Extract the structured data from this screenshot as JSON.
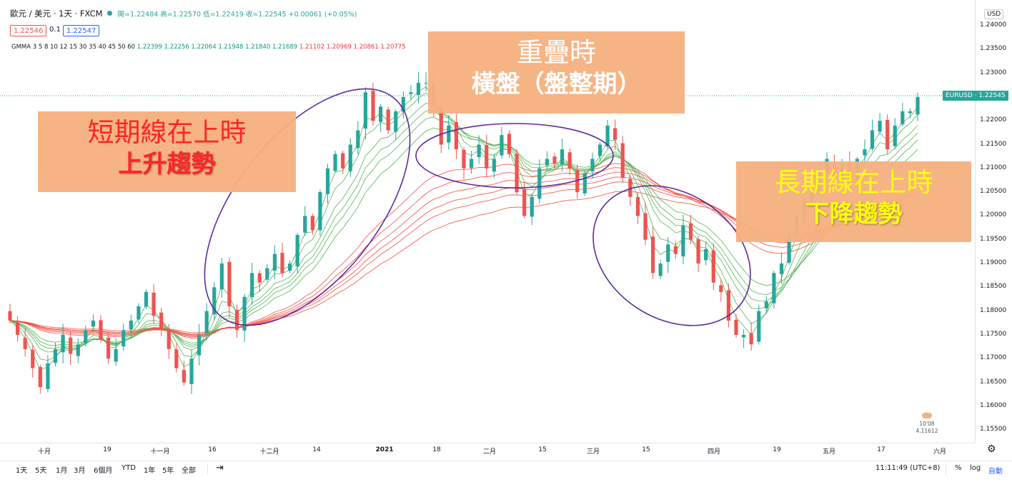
{
  "header": {
    "symbol_line": "歐元 / 美元 · 1天 · FXCM",
    "ohlc": "開=1.22484 高=1.22570 低=1.22419 收=1.22545 +0.00061 (+0.05%)",
    "bid": "1.22546",
    "spread": "0.1",
    "ask": "1.22547",
    "gmma_label": "GMMA 3 5 8 10 12 15 30 35 40 45 50 60",
    "gmma_short_values": "1.22399  1.22256  1.22064  1.21948  1.21840  1.21689",
    "gmma_long_values": "1.21102  1.20969  1.20861  1.20775"
  },
  "price_axis": {
    "currency": "USD",
    "symbol_tag": "EURUSD · 1.22545",
    "ticks": [
      "1.24000",
      "1.23500",
      "1.23000",
      "1.22500",
      "1.22000",
      "1.21500",
      "1.21000",
      "1.20500",
      "1.20000",
      "1.19500",
      "1.19000",
      "1.18500",
      "1.18000",
      "1.17500",
      "1.17000",
      "1.16500",
      "1.16000",
      "1.15500"
    ]
  },
  "time_axis": {
    "labels": [
      "十月",
      "19",
      "十一月",
      "16",
      "十二月",
      "14",
      "2021",
      "18",
      "二月",
      "15",
      "三月",
      "15",
      "四月",
      "19",
      "五月",
      "17",
      "六月"
    ]
  },
  "bottom_bar": {
    "ranges": [
      "1天",
      "5天",
      "1月",
      "3月",
      "6個月",
      "YTD",
      "1年",
      "5年",
      "全部"
    ],
    "clock": "11:11:49 (UTC+8)",
    "percent": "%",
    "log": "log",
    "auto": "自動"
  },
  "annotations": {
    "box1": {
      "line1": "短期線在上時",
      "line2": "上升趨勢"
    },
    "box2": {
      "line1": "重疊時",
      "line2": "橫盤（盤整期）"
    },
    "box3": {
      "line1": "長期線在上時",
      "line2": "下降趨勢"
    }
  },
  "watermark": {
    "line1": "10'08",
    "line2": "4.11612"
  },
  "colors": {
    "up": "#26a69a",
    "down": "#ef5350",
    "short_ma": "#4caf50",
    "long_ma": "#f44336",
    "ellipse": "#5b2a9e"
  },
  "chart_data": {
    "type": "candlestick",
    "title": "歐元 / 美元 · 1天 · FXCM",
    "ylim": [
      1.152,
      1.242
    ],
    "x_labels": [
      "十月",
      "19",
      "十一月",
      "16",
      "十二月",
      "14",
      "2021",
      "18",
      "二月",
      "15",
      "三月",
      "15",
      "四月",
      "19",
      "五月",
      "17",
      "六月"
    ],
    "close_path": [
      1.178,
      1.175,
      1.172,
      1.168,
      1.164,
      1.169,
      1.172,
      1.175,
      1.171,
      1.173,
      1.176,
      1.178,
      1.174,
      1.17,
      1.172,
      1.176,
      1.178,
      1.181,
      1.184,
      1.179,
      1.176,
      1.172,
      1.168,
      1.165,
      1.17,
      1.175,
      1.18,
      1.185,
      1.19,
      1.181,
      1.176,
      1.183,
      1.188,
      1.186,
      1.189,
      1.192,
      1.188,
      1.19,
      1.196,
      1.2,
      1.197,
      1.205,
      1.21,
      1.213,
      1.21,
      1.215,
      1.218,
      1.226,
      1.22,
      1.223,
      1.218,
      1.222,
      1.225,
      1.226,
      1.228,
      1.228,
      1.223,
      1.215,
      1.219,
      1.214,
      1.21,
      1.212,
      1.215,
      1.21,
      1.212,
      1.217,
      1.213,
      1.205,
      1.2,
      1.204,
      1.21,
      1.212,
      1.211,
      1.214,
      1.21,
      1.205,
      1.209,
      1.212,
      1.215,
      1.219,
      1.216,
      1.208,
      1.204,
      1.2,
      1.195,
      1.188,
      1.19,
      1.194,
      1.192,
      1.198,
      1.195,
      1.19,
      1.193,
      1.186,
      1.184,
      1.178,
      1.175,
      1.175,
      1.173,
      1.18,
      1.182,
      1.188,
      1.19,
      1.196,
      1.2,
      1.203,
      1.205,
      1.21,
      1.212,
      1.208,
      1.211,
      1.207,
      1.212,
      1.214,
      1.218,
      1.22,
      1.214,
      1.219,
      1.222,
      1.222,
      1.225
    ],
    "series": [
      {
        "name": "GMMA short (3,5,8,10,12,15)",
        "role": "short",
        "last_values": [
          1.22399,
          1.22256,
          1.22064,
          1.21948,
          1.2184,
          1.21689
        ]
      },
      {
        "name": "GMMA long (30,35,40,45,50,60)",
        "role": "long",
        "last_values": [
          1.21102,
          1.20969,
          1.20861,
          1.20775
        ]
      }
    ],
    "last_price": 1.22545,
    "annotations": [
      "短期線在上時 上升趨勢",
      "重疊時 橫盤（盤整期）",
      "長期線在上時 下降趨勢"
    ]
  }
}
